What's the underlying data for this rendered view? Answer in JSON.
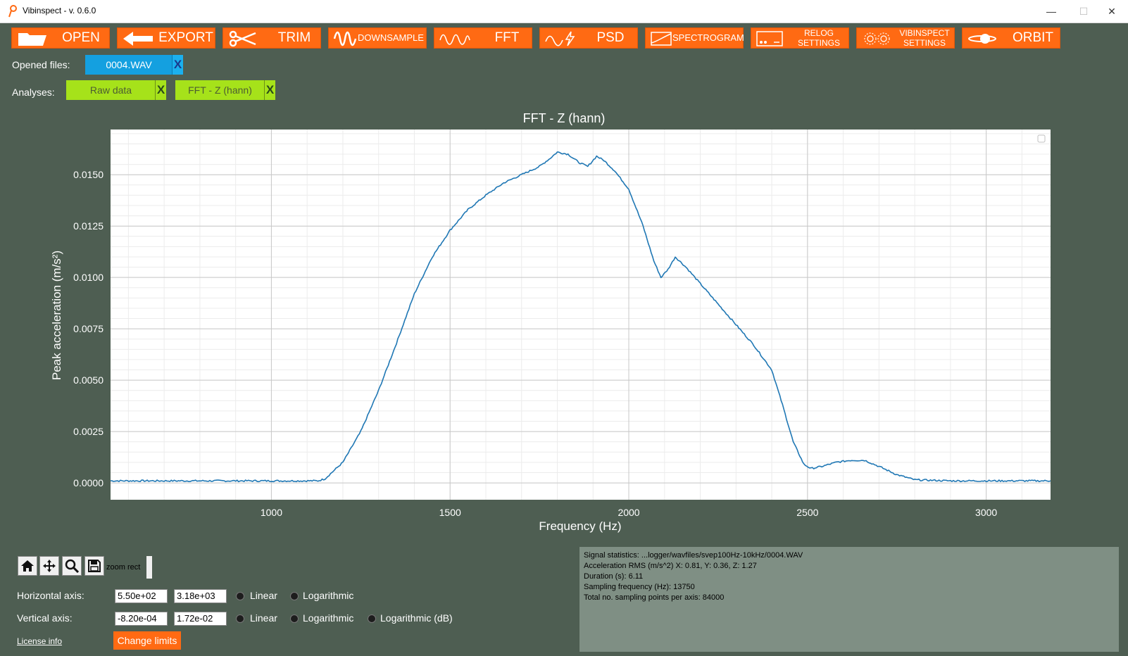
{
  "window": {
    "title": "Vibinspect - v. 0.6.0",
    "min_glyph": "—",
    "max_glyph": "☐",
    "close_glyph": "✕"
  },
  "toolbar": {
    "open": "OPEN",
    "export": "EXPORT",
    "trim": "TRIM",
    "downsample": "DOWNSAMPLE",
    "fft": "FFT",
    "psd": "PSD",
    "spectrogram": "SPECTROGRAM",
    "relog_line1": "RELOG",
    "relog_line2": "SETTINGS",
    "vibinspect_line1": "VIBINSPECT",
    "vibinspect_line2": "SETTINGS",
    "orbit": "ORBIT"
  },
  "files": {
    "label": "Opened files:",
    "items": [
      {
        "name": "0004.WAV",
        "close": "X"
      }
    ]
  },
  "analyses": {
    "label": "Analyses:",
    "items": [
      {
        "name": "Raw data",
        "close": "X"
      },
      {
        "name": "FFT - Z (hann)",
        "close": "X"
      }
    ]
  },
  "colors": {
    "accent": "#ff6a13",
    "file_tab": "#14a0e0",
    "analysis_tab": "#a6e21a",
    "background": "#4e5e52",
    "line": "#1f77b4"
  },
  "chart_data": {
    "type": "line",
    "title": "FFT - Z (hann)",
    "xlabel": "Frequency (Hz)",
    "ylabel": "Peak acceleration (m/s²)",
    "xlim": [
      550,
      3180
    ],
    "ylim": [
      -0.00082,
      0.0172
    ],
    "xticks": [
      1000,
      1500,
      2000,
      2500,
      3000
    ],
    "xtick_labels": [
      "1000",
      "1500",
      "2000",
      "2500",
      "3000"
    ],
    "yticks": [
      0.0,
      0.0025,
      0.005,
      0.0075,
      0.01,
      0.0125,
      0.015
    ],
    "ytick_labels": [
      "0.0000",
      "0.0025",
      "0.0050",
      "0.0075",
      "0.0100",
      "0.0125",
      "0.0150"
    ],
    "grid": true,
    "series": [
      {
        "x": [
          550,
          700,
          900,
          1050,
          1130,
          1150,
          1200,
          1250,
          1300,
          1350,
          1400,
          1450,
          1500,
          1550,
          1600,
          1650,
          1700,
          1750,
          1780,
          1800,
          1830,
          1860,
          1885,
          1910,
          1930,
          1960,
          2000,
          2040,
          2070,
          2090,
          2110,
          2130,
          2160,
          2200,
          2250,
          2300,
          2350,
          2400,
          2430,
          2460,
          2490,
          2510,
          2540,
          2580,
          2620,
          2660,
          2700,
          2750,
          2800,
          2900,
          3000,
          3180
        ],
        "y": [
          0.0001,
          0.0001,
          0.0001,
          0.0001,
          0.0001,
          0.0002,
          0.001,
          0.0025,
          0.0045,
          0.0068,
          0.0092,
          0.011,
          0.0123,
          0.0133,
          0.014,
          0.0146,
          0.015,
          0.0154,
          0.0158,
          0.0161,
          0.016,
          0.0156,
          0.0154,
          0.0159,
          0.0157,
          0.0152,
          0.0143,
          0.0125,
          0.0108,
          0.01,
          0.0104,
          0.011,
          0.0105,
          0.0097,
          0.0087,
          0.0077,
          0.0067,
          0.0055,
          0.0038,
          0.002,
          0.0009,
          0.0007,
          0.0008,
          0.001,
          0.0011,
          0.0011,
          0.0008,
          0.0004,
          0.00015,
          0.0001,
          0.0001,
          0.0001
        ]
      }
    ]
  },
  "nav": {
    "zoom_label": "zoom rect"
  },
  "axes_controls": {
    "horizontal": {
      "label": "Horizontal axis:",
      "min": "5.50e+02",
      "max": "3.18e+03",
      "options": [
        "Linear",
        "Logarithmic"
      ]
    },
    "vertical": {
      "label": "Vertical axis:",
      "min": "-8.20e-04",
      "max": "1.72e-02",
      "options": [
        "Linear",
        "Logarithmic",
        "Logarithmic (dB)"
      ]
    }
  },
  "license": "License info",
  "change_limits": "Change limits",
  "stats": [
    "Signal statistics: ...logger/wavfiles/svep100Hz-10kHz/0004.WAV",
    "Acceleration RMS (m/s^2) X: 0.81, Y: 0.36, Z: 1.27",
    "Duration (s): 6.11",
    "Sampling frequency (Hz): 13750",
    "Total no. sampling points per axis: 84000"
  ]
}
